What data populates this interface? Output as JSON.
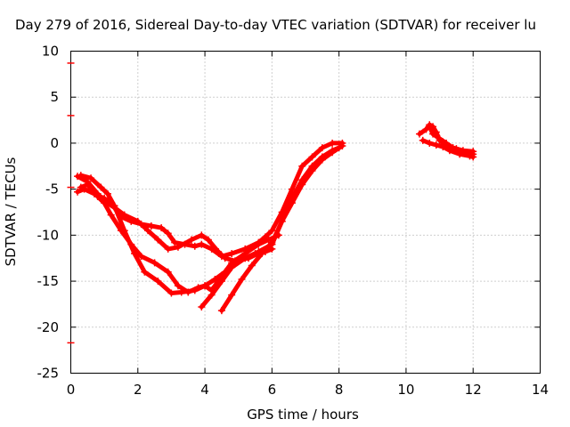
{
  "chart_data": {
    "type": "scatter",
    "title": "Day 279 of 2016, Sidereal Day-to-day VTEC variation (SDTVAR) for receiver lu",
    "xlabel": "GPS time / hours",
    "ylabel": "SDTVAR / TECUs",
    "xlim": [
      0,
      14
    ],
    "ylim": [
      -25,
      10
    ],
    "xticks": [
      "0",
      "2",
      "4",
      "6",
      "8",
      "10",
      "12",
      "14"
    ],
    "yticks": [
      "10",
      "5",
      "0",
      "-5",
      "-10",
      "-15",
      "-20",
      "-25"
    ],
    "grid": true,
    "series_color": "#ff0000",
    "left_axis_markers": [
      8.7,
      3.0,
      -4.8,
      -21.7
    ],
    "series": [
      {
        "x": [
          0.2,
          0.4,
          0.7,
          1.0,
          1.2,
          1.5,
          1.8,
          2.1,
          2.4,
          2.7,
          2.9,
          3.1,
          3.4,
          3.7,
          3.9,
          4.2,
          4.5,
          4.8,
          5.2,
          5.6,
          5.8,
          6.0,
          6.3,
          6.6,
          6.9,
          7.2,
          7.5,
          7.8,
          8.1
        ],
        "y": [
          -5.3,
          -5.0,
          -5.5,
          -6.0,
          -6.5,
          -8.0,
          -8.5,
          -8.8,
          -9.0,
          -9.2,
          -9.8,
          -10.8,
          -11.0,
          -11.2,
          -11.0,
          -11.5,
          -12.3,
          -12.0,
          -11.5,
          -10.8,
          -10.2,
          -9.5,
          -7.5,
          -5.0,
          -2.5,
          -1.5,
          -0.5,
          0.0,
          0.0
        ]
      },
      {
        "x": [
          0.3,
          0.5,
          0.8,
          1.0,
          1.2,
          1.5,
          1.8,
          2.1,
          2.5,
          2.9,
          3.2,
          3.5,
          3.8,
          4.0,
          4.2,
          4.5,
          4.8,
          5.2,
          5.6,
          5.9,
          6.2
        ],
        "y": [
          -4.8,
          -4.5,
          -5.8,
          -6.5,
          -7.8,
          -9.5,
          -11.0,
          -12.3,
          -13.0,
          -14.0,
          -15.5,
          -16.2,
          -15.7,
          -15.5,
          -16.0,
          -14.5,
          -13.0,
          -12.0,
          -11.0,
          -10.5,
          -10.0
        ]
      },
      {
        "x": [
          0.2,
          0.5,
          0.8,
          1.0,
          1.3,
          1.6,
          2.0,
          2.3,
          2.6,
          2.9,
          3.2,
          3.6,
          3.9,
          4.1,
          4.4,
          4.6,
          4.9,
          5.3,
          5.7,
          6.0
        ],
        "y": [
          -3.6,
          -4.2,
          -5.5,
          -6.3,
          -7.0,
          -7.8,
          -8.5,
          -9.5,
          -10.5,
          -11.5,
          -11.3,
          -10.5,
          -10.0,
          -10.5,
          -11.8,
          -12.5,
          -12.8,
          -12.5,
          -11.8,
          -11.0
        ]
      },
      {
        "x": [
          0.3,
          0.6,
          0.9,
          1.1,
          1.3,
          1.6,
          1.9,
          2.2,
          2.6,
          3.0,
          3.3,
          3.7,
          4.0,
          4.3,
          4.6,
          4.9,
          5.2,
          5.5,
          5.8,
          6.0
        ],
        "y": [
          -3.5,
          -3.8,
          -4.8,
          -5.5,
          -6.8,
          -9.5,
          -12.0,
          -14.0,
          -15.0,
          -16.3,
          -16.2,
          -16.0,
          -15.5,
          -14.8,
          -14.0,
          -13.0,
          -12.5,
          -12.0,
          -11.8,
          -11.5
        ]
      },
      {
        "x": [
          3.9,
          4.2,
          4.5,
          4.8,
          5.2,
          5.6,
          6.0,
          6.3,
          6.6,
          6.9,
          7.2,
          7.5,
          7.8,
          8.0
        ],
        "y": [
          -17.8,
          -16.5,
          -15.0,
          -13.5,
          -12.5,
          -11.8,
          -11.0,
          -8.5,
          -6.0,
          -4.0,
          -2.5,
          -1.5,
          -0.8,
          -0.5
        ]
      },
      {
        "x": [
          4.5,
          4.8,
          5.1,
          5.4,
          5.7,
          6.0,
          6.3,
          6.6,
          6.9,
          7.2,
          7.5,
          7.8,
          8.1
        ],
        "y": [
          -18.2,
          -16.5,
          -14.8,
          -13.3,
          -12.0,
          -10.8,
          -8.5,
          -6.5,
          -4.5,
          -3.0,
          -1.8,
          -1.0,
          -0.3
        ]
      },
      {
        "x": [
          10.4,
          10.6,
          10.7,
          10.8,
          10.9,
          11.0,
          11.2,
          11.5,
          11.8,
          12.0
        ],
        "y": [
          1.0,
          1.5,
          2.0,
          1.8,
          1.2,
          0.3,
          -0.3,
          -0.6,
          -1.0,
          -1.2
        ]
      },
      {
        "x": [
          10.5,
          10.7,
          10.9,
          11.1,
          11.3,
          11.6,
          11.9,
          12.0
        ],
        "y": [
          0.3,
          0.0,
          -0.2,
          -0.4,
          -0.8,
          -1.2,
          -1.4,
          -1.5
        ]
      },
      {
        "x": [
          10.7,
          10.8,
          11.0,
          11.2,
          11.4,
          11.7,
          12.0
        ],
        "y": [
          1.8,
          1.0,
          0.5,
          0.0,
          -0.5,
          -0.8,
          -0.9
        ]
      }
    ]
  }
}
